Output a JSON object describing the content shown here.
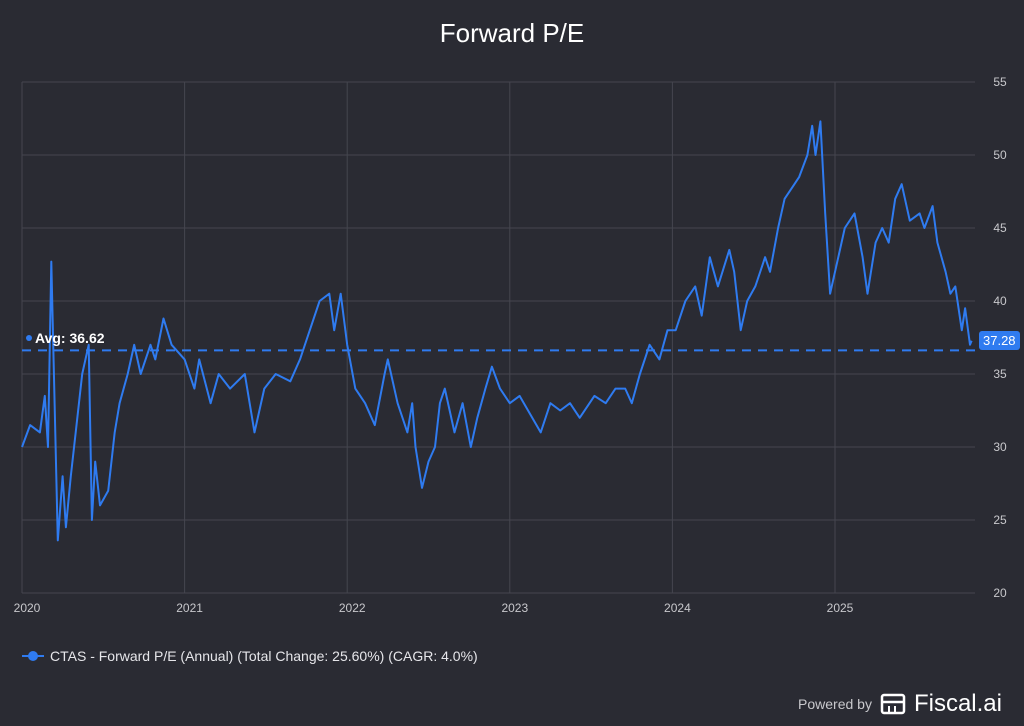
{
  "chart_data": {
    "type": "line",
    "title": "Forward P/E",
    "xlabel": "",
    "ylabel": "",
    "xlim": [
      2020.0,
      2025.87
    ],
    "ylim": [
      20,
      55
    ],
    "x_ticks": [
      "2020",
      "2021",
      "2022",
      "2023",
      "2024",
      "2025"
    ],
    "y_ticks": [
      20,
      25,
      30,
      35,
      40,
      45,
      50,
      55
    ],
    "grid": true,
    "color": "#2f7bf0",
    "average": {
      "label": "Avg: 36.62",
      "value": 36.62
    },
    "last_value": {
      "label": "37.28",
      "value": 37.28
    },
    "legend": "CTAS - Forward P/E (Annual) (Total Change: 25.60%) (CAGR: 4.0%)",
    "legend_position": "bottom-left",
    "series": [
      {
        "name": "CTAS - Forward P/E (Annual)",
        "points": [
          [
            2020.0,
            30
          ],
          [
            2020.05,
            31.5
          ],
          [
            2020.11,
            31
          ],
          [
            2020.14,
            33.5
          ],
          [
            2020.16,
            30
          ],
          [
            2020.18,
            42.7
          ],
          [
            2020.22,
            23.6
          ],
          [
            2020.25,
            28
          ],
          [
            2020.27,
            24.5
          ],
          [
            2020.3,
            28
          ],
          [
            2020.33,
            31
          ],
          [
            2020.37,
            35
          ],
          [
            2020.41,
            37
          ],
          [
            2020.43,
            25
          ],
          [
            2020.45,
            29
          ],
          [
            2020.48,
            26
          ],
          [
            2020.53,
            27
          ],
          [
            2020.57,
            31
          ],
          [
            2020.6,
            33
          ],
          [
            2020.65,
            35
          ],
          [
            2020.69,
            37
          ],
          [
            2020.73,
            35
          ],
          [
            2020.79,
            37
          ],
          [
            2020.82,
            36
          ],
          [
            2020.87,
            38.8
          ],
          [
            2020.92,
            37
          ],
          [
            2021.0,
            36
          ],
          [
            2021.06,
            34
          ],
          [
            2021.09,
            36
          ],
          [
            2021.16,
            33
          ],
          [
            2021.21,
            35
          ],
          [
            2021.28,
            34
          ],
          [
            2021.37,
            35
          ],
          [
            2021.43,
            31
          ],
          [
            2021.49,
            34
          ],
          [
            2021.56,
            35
          ],
          [
            2021.65,
            34.5
          ],
          [
            2021.71,
            36
          ],
          [
            2021.77,
            38
          ],
          [
            2021.83,
            40
          ],
          [
            2021.89,
            40.5
          ],
          [
            2021.92,
            38
          ],
          [
            2021.96,
            40.5
          ],
          [
            2022.0,
            37
          ],
          [
            2022.05,
            34
          ],
          [
            2022.11,
            33
          ],
          [
            2022.17,
            31.5
          ],
          [
            2022.23,
            35
          ],
          [
            2022.25,
            36
          ],
          [
            2022.31,
            33
          ],
          [
            2022.37,
            31
          ],
          [
            2022.4,
            33
          ],
          [
            2022.42,
            30
          ],
          [
            2022.46,
            27.2
          ],
          [
            2022.5,
            29
          ],
          [
            2022.54,
            30
          ],
          [
            2022.57,
            33
          ],
          [
            2022.6,
            34
          ],
          [
            2022.66,
            31
          ],
          [
            2022.71,
            33
          ],
          [
            2022.76,
            30
          ],
          [
            2022.8,
            32
          ],
          [
            2022.85,
            34
          ],
          [
            2022.89,
            35.5
          ],
          [
            2022.94,
            34
          ],
          [
            2023.0,
            33
          ],
          [
            2023.06,
            33.5
          ],
          [
            2023.19,
            31
          ],
          [
            2023.25,
            33
          ],
          [
            2023.31,
            32.5
          ],
          [
            2023.37,
            33
          ],
          [
            2023.43,
            32
          ],
          [
            2023.52,
            33.5
          ],
          [
            2023.59,
            33
          ],
          [
            2023.65,
            34
          ],
          [
            2023.71,
            34
          ],
          [
            2023.75,
            33
          ],
          [
            2023.8,
            35
          ],
          [
            2023.86,
            37
          ],
          [
            2023.92,
            36
          ],
          [
            2023.97,
            38
          ],
          [
            2024.02,
            38
          ],
          [
            2024.08,
            40
          ],
          [
            2024.14,
            41
          ],
          [
            2024.18,
            39
          ],
          [
            2024.23,
            43
          ],
          [
            2024.28,
            41
          ],
          [
            2024.35,
            43.5
          ],
          [
            2024.38,
            42
          ],
          [
            2024.42,
            38
          ],
          [
            2024.46,
            40
          ],
          [
            2024.51,
            41
          ],
          [
            2024.57,
            43
          ],
          [
            2024.6,
            42
          ],
          [
            2024.65,
            45
          ],
          [
            2024.69,
            47
          ],
          [
            2024.75,
            48
          ],
          [
            2024.78,
            48.5
          ],
          [
            2024.83,
            50
          ],
          [
            2024.86,
            52
          ],
          [
            2024.88,
            50
          ],
          [
            2024.91,
            52.3
          ],
          [
            2024.94,
            46
          ],
          [
            2024.97,
            40.5
          ],
          [
            2025.02,
            43
          ],
          [
            2025.06,
            45
          ],
          [
            2025.12,
            46
          ],
          [
            2025.17,
            43
          ],
          [
            2025.2,
            40.5
          ],
          [
            2025.25,
            44
          ],
          [
            2025.29,
            45
          ],
          [
            2025.33,
            44
          ],
          [
            2025.37,
            47
          ],
          [
            2025.41,
            48
          ],
          [
            2025.46,
            45.5
          ],
          [
            2025.52,
            46
          ],
          [
            2025.55,
            45
          ],
          [
            2025.6,
            46.5
          ],
          [
            2025.63,
            44
          ],
          [
            2025.68,
            42
          ],
          [
            2025.71,
            40.5
          ],
          [
            2025.74,
            41
          ],
          [
            2025.78,
            38
          ],
          [
            2025.8,
            39.5
          ],
          [
            2025.83,
            37
          ],
          [
            2025.84,
            37.28
          ]
        ]
      }
    ]
  },
  "footer": {
    "powered_by": "Powered by",
    "brand": "Fiscal.ai"
  }
}
